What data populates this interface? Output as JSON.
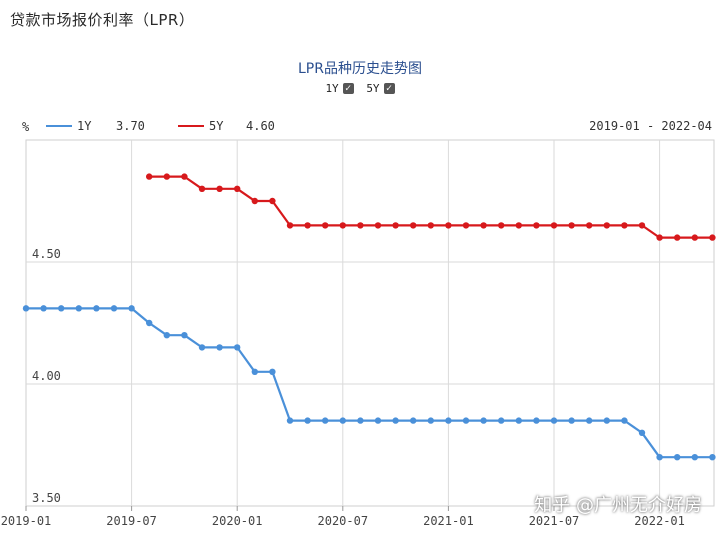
{
  "page_heading": "贷款市场报价利率（LPR）",
  "watermark": "知乎 @广州无介好房",
  "chart_data": {
    "type": "line",
    "title": "LPR品种历史走势图",
    "ylabel": "%",
    "date_range": "2019-01 - 2022-04",
    "toggles": [
      {
        "label": "1Y",
        "checked": true
      },
      {
        "label": "5Y",
        "checked": true
      }
    ],
    "legend": [
      {
        "name": "1Y",
        "value": "3.70",
        "color": "#4a90d9"
      },
      {
        "name": "5Y",
        "value": "4.60",
        "color": "#d7191c"
      }
    ],
    "ylim": [
      3.5,
      5.0
    ],
    "y_ticks": [
      "4.50",
      "4.00",
      "3.50"
    ],
    "x_ticks": [
      "2019-01",
      "2019-07",
      "2020-01",
      "2020-07",
      "2021-01",
      "2021-07",
      "2022-01"
    ],
    "grid": true,
    "x": [
      "2019-01",
      "2019-02",
      "2019-03",
      "2019-04",
      "2019-05",
      "2019-06",
      "2019-07",
      "2019-08",
      "2019-09",
      "2019-10",
      "2019-11",
      "2019-12",
      "2020-01",
      "2020-02",
      "2020-03",
      "2020-04",
      "2020-05",
      "2020-06",
      "2020-07",
      "2020-08",
      "2020-09",
      "2020-10",
      "2020-11",
      "2020-12",
      "2021-01",
      "2021-02",
      "2021-03",
      "2021-04",
      "2021-05",
      "2021-06",
      "2021-07",
      "2021-08",
      "2021-09",
      "2021-10",
      "2021-11",
      "2021-12",
      "2022-01",
      "2022-02",
      "2022-03",
      "2022-04"
    ],
    "series": [
      {
        "name": "1Y",
        "color": "#4a90d9",
        "values": [
          4.31,
          4.31,
          4.31,
          4.31,
          4.31,
          4.31,
          4.31,
          4.25,
          4.2,
          4.2,
          4.15,
          4.15,
          4.15,
          4.05,
          4.05,
          3.85,
          3.85,
          3.85,
          3.85,
          3.85,
          3.85,
          3.85,
          3.85,
          3.85,
          3.85,
          3.85,
          3.85,
          3.85,
          3.85,
          3.85,
          3.85,
          3.85,
          3.85,
          3.85,
          3.85,
          3.8,
          3.7,
          3.7,
          3.7,
          3.7
        ]
      },
      {
        "name": "5Y",
        "color": "#d7191c",
        "values": [
          null,
          null,
          null,
          null,
          null,
          null,
          null,
          4.85,
          4.85,
          4.85,
          4.8,
          4.8,
          4.8,
          4.75,
          4.75,
          4.65,
          4.65,
          4.65,
          4.65,
          4.65,
          4.65,
          4.65,
          4.65,
          4.65,
          4.65,
          4.65,
          4.65,
          4.65,
          4.65,
          4.65,
          4.65,
          4.65,
          4.65,
          4.65,
          4.65,
          4.65,
          4.6,
          4.6,
          4.6,
          4.6
        ]
      }
    ]
  }
}
